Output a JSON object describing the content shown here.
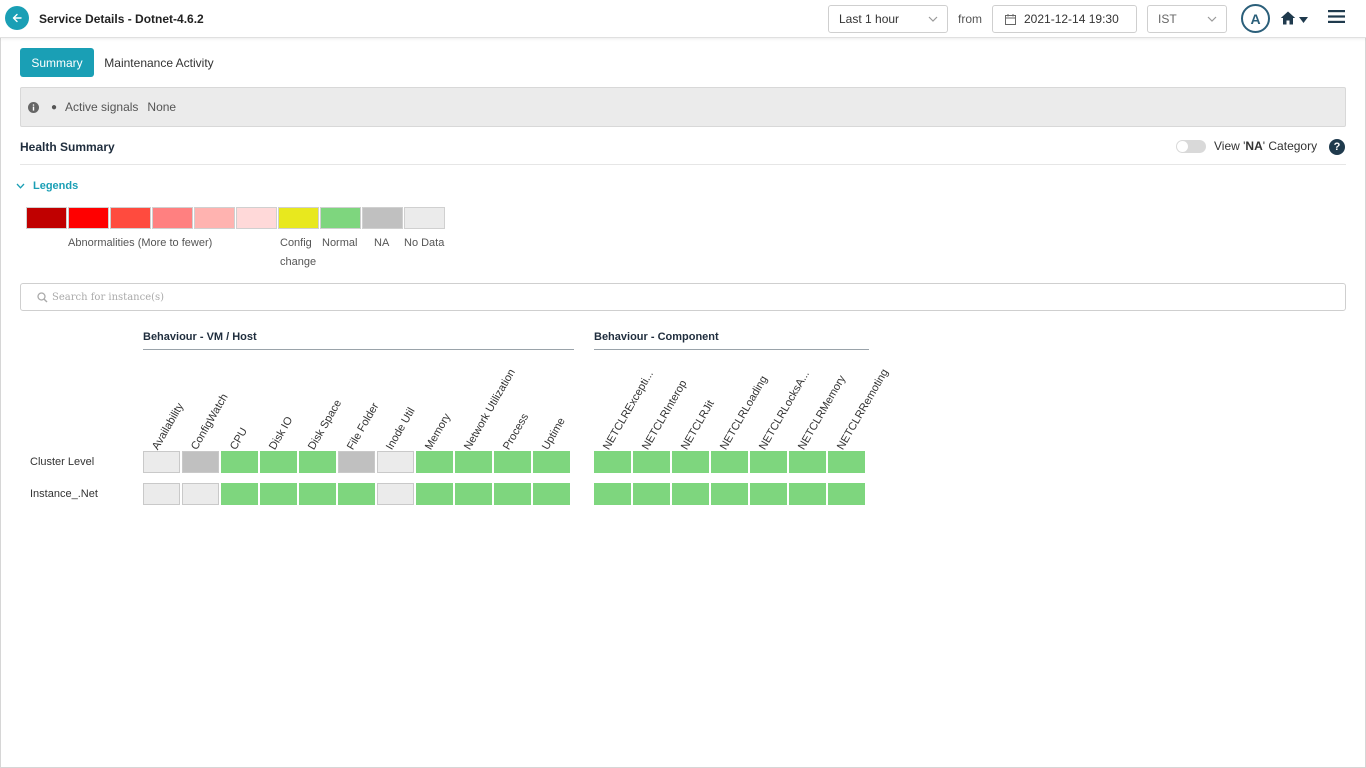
{
  "header": {
    "title": "Service Details - Dotnet-4.6.2",
    "time_range": "Last 1 hour",
    "from_label": "from",
    "date_value": "2021-12-14 19:30",
    "timezone": "IST",
    "avatar_initial": "A"
  },
  "tabs": [
    {
      "label": "Summary",
      "active": true
    },
    {
      "label": "Maintenance Activity",
      "active": false
    }
  ],
  "signals": {
    "label": "Active signals",
    "value": "None"
  },
  "health_summary": {
    "title": "Health Summary",
    "view_na_prefix": "View '",
    "view_na_bold": "NA",
    "view_na_suffix": "' Category",
    "help": "?"
  },
  "legends": {
    "toggle_label": "Legends",
    "abnormalities_label": "Abnormalities (More to fewer)",
    "config_label_1": "Config",
    "config_label_2": "change",
    "normal_label": "Normal",
    "na_label": "NA",
    "nodata_label": "No Data",
    "swatch_colors": [
      "#c00000",
      "#ff0000",
      "#ff4b3e",
      "#ff8080",
      "#ffb3b0",
      "#ffd9d9",
      "#e8e81e",
      "#7ed67e",
      "#c0c0c0",
      "#ebebeb"
    ]
  },
  "search": {
    "placeholder": "Search for instance(s)"
  },
  "status_colors": {
    "normal": "#7ed67e",
    "na": "#c0c0c0",
    "nodata": "#ebebeb"
  },
  "grid": {
    "groups": [
      {
        "title": "Behaviour - VM / Host",
        "columns": [
          "Availability",
          "ConfigWatch",
          "CPU",
          "Disk IO",
          "Disk Space",
          "File Folder",
          "Inode Util",
          "Memory",
          "Network Utilization",
          "Process",
          "Uptime"
        ]
      },
      {
        "title": "Behaviour - Component",
        "columns": [
          "NETCLRExcepti...",
          "NETCLRInterop",
          "NETCLRJit",
          "NETCLRLoading",
          "NETCLRLocksA...",
          "NETCLRMemory",
          "NETCLRRemoting"
        ]
      }
    ],
    "rows": [
      {
        "label": "Cluster Level",
        "status": [
          [
            "nodata",
            "na",
            "normal",
            "normal",
            "normal",
            "na",
            "nodata",
            "normal",
            "normal",
            "normal",
            "normal"
          ],
          [
            "normal",
            "normal",
            "normal",
            "normal",
            "normal",
            "normal",
            "normal"
          ]
        ]
      },
      {
        "label": "Instance_.Net",
        "status": [
          [
            "nodata",
            "nodata",
            "normal",
            "normal",
            "normal",
            "normal",
            "nodata",
            "normal",
            "normal",
            "normal",
            "normal"
          ],
          [
            "normal",
            "normal",
            "normal",
            "normal",
            "normal",
            "normal",
            "normal"
          ]
        ]
      }
    ]
  }
}
